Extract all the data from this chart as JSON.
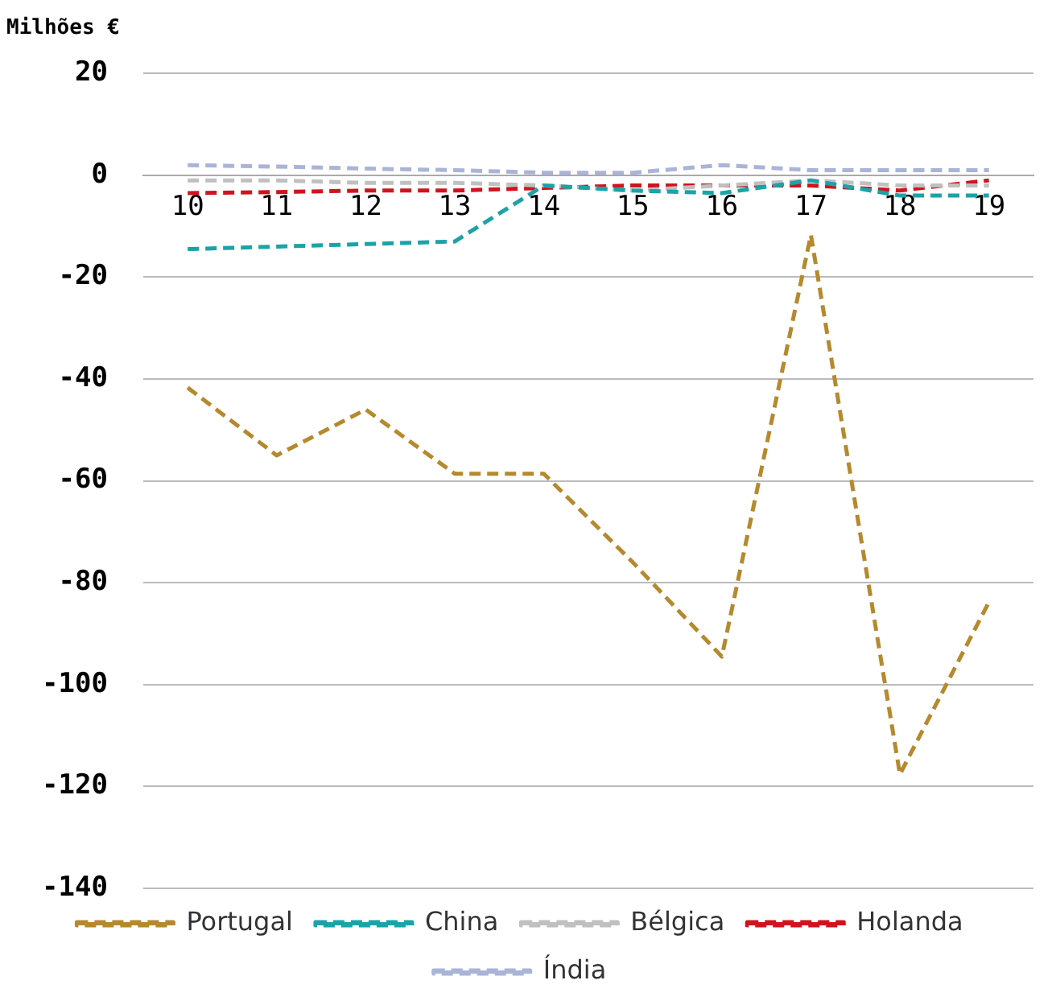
{
  "chart_data": {
    "type": "line",
    "ylabel": "Milhões €",
    "categories": [
      "10",
      "11",
      "12",
      "13",
      "14",
      "15",
      "16",
      "17",
      "18",
      "19"
    ],
    "series": [
      {
        "name": "Portugal",
        "color": "#b5892e",
        "values": [
          -41.7,
          -55,
          -46,
          -58.6,
          -58.6,
          -76,
          -94.5,
          -11.7,
          -117.6,
          -83.8
        ]
      },
      {
        "name": "China",
        "color": "#1aa3a8",
        "values": [
          -14.5,
          -14,
          -13.5,
          -13,
          -2,
          -3,
          -3.5,
          -1,
          -4,
          -4
        ]
      },
      {
        "name": "Bélgica",
        "color": "#c0c0c0",
        "values": [
          -1,
          -1,
          -1.5,
          -1.5,
          -2,
          -3,
          -2,
          -1,
          -2,
          -2
        ]
      },
      {
        "name": "Holanda",
        "color": "#d0141e",
        "values": [
          -3.5,
          -3.3,
          -3,
          -3,
          -2.5,
          -2,
          -2,
          -2,
          -3,
          -1
        ]
      },
      {
        "name": "Índia",
        "color": "#aab4d8",
        "values": [
          2,
          1.7,
          1.3,
          1,
          0.5,
          0.5,
          2,
          1,
          1,
          1
        ]
      }
    ],
    "ylim": [
      -140,
      20
    ],
    "yticks": [
      20,
      0,
      -20,
      -40,
      -60,
      -80,
      -100,
      -120,
      -140
    ],
    "grid": "y",
    "legend": "bottom",
    "line_style": "dashed",
    "marker": "none"
  }
}
